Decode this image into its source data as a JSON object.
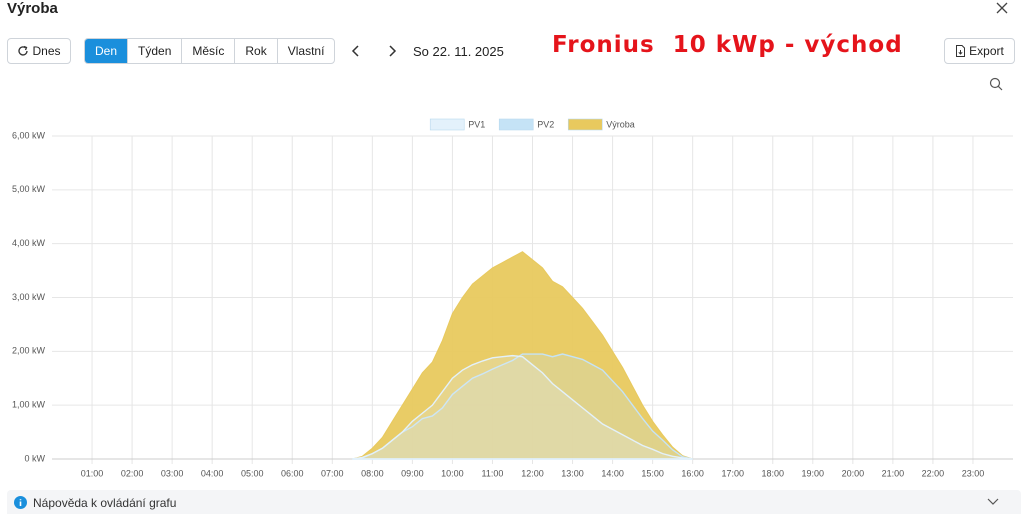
{
  "header": {
    "title": "Výroba"
  },
  "toolbar": {
    "today": "Dnes",
    "periods": [
      "Den",
      "Týden",
      "Měsíc",
      "Rok",
      "Vlastní"
    ],
    "active_period": "Den",
    "date": "So 22. 11. 2025",
    "annotation": "Fronius  10 kWp - východ",
    "export": "Export"
  },
  "chart_data": {
    "type": "area",
    "x": [
      7.5,
      7.75,
      8,
      8.25,
      8.5,
      8.75,
      9,
      9.25,
      9.5,
      9.75,
      10,
      10.25,
      10.5,
      10.75,
      11,
      11.25,
      11.5,
      11.75,
      12,
      12.25,
      12.5,
      12.75,
      13,
      13.25,
      13.5,
      13.75,
      14,
      14.25,
      14.5,
      14.75,
      15,
      15.25,
      15.5,
      15.75,
      16
    ],
    "series": [
      {
        "name": "PV1",
        "color": "#e3f1fb",
        "values": [
          0,
          0.03,
          0.1,
          0.2,
          0.35,
          0.5,
          0.7,
          0.85,
          1.0,
          1.25,
          1.5,
          1.65,
          1.75,
          1.82,
          1.88,
          1.9,
          1.92,
          1.9,
          1.75,
          1.6,
          1.4,
          1.25,
          1.1,
          0.95,
          0.8,
          0.65,
          0.55,
          0.45,
          0.35,
          0.25,
          0.18,
          0.1,
          0.05,
          0.02,
          0
        ]
      },
      {
        "name": "PV2",
        "color": "#c5e3f6",
        "values": [
          0,
          0.02,
          0.1,
          0.2,
          0.35,
          0.5,
          0.6,
          0.75,
          0.8,
          0.95,
          1.2,
          1.35,
          1.5,
          1.58,
          1.67,
          1.75,
          1.83,
          1.95,
          1.95,
          1.95,
          1.9,
          1.95,
          1.9,
          1.85,
          1.75,
          1.65,
          1.45,
          1.25,
          1.0,
          0.75,
          0.52,
          0.35,
          0.17,
          0.04,
          0
        ]
      },
      {
        "name": "Výroba",
        "color": "#e8c95e",
        "values": [
          0,
          0.05,
          0.2,
          0.4,
          0.7,
          1.0,
          1.3,
          1.6,
          1.8,
          2.2,
          2.7,
          3.0,
          3.25,
          3.4,
          3.55,
          3.65,
          3.75,
          3.85,
          3.7,
          3.55,
          3.3,
          3.2,
          3.0,
          2.8,
          2.55,
          2.3,
          2.0,
          1.7,
          1.35,
          1.0,
          0.7,
          0.45,
          0.22,
          0.06,
          0
        ]
      }
    ],
    "xlim": [
      0,
      24
    ],
    "xticks": [
      {
        "value": 1,
        "label": "01:00"
      },
      {
        "value": 2,
        "label": "02:00"
      },
      {
        "value": 3,
        "label": "03:00"
      },
      {
        "value": 4,
        "label": "04:00"
      },
      {
        "value": 5,
        "label": "05:00"
      },
      {
        "value": 6,
        "label": "06:00"
      },
      {
        "value": 7,
        "label": "07:00"
      },
      {
        "value": 8,
        "label": "08:00"
      },
      {
        "value": 9,
        "label": "09:00"
      },
      {
        "value": 10,
        "label": "10:00"
      },
      {
        "value": 11,
        "label": "11:00"
      },
      {
        "value": 12,
        "label": "12:00"
      },
      {
        "value": 13,
        "label": "13:00"
      },
      {
        "value": 14,
        "label": "14:00"
      },
      {
        "value": 15,
        "label": "15:00"
      },
      {
        "value": 16,
        "label": "16:00"
      },
      {
        "value": 17,
        "label": "17:00"
      },
      {
        "value": 18,
        "label": "18:00"
      },
      {
        "value": 19,
        "label": "19:00"
      },
      {
        "value": 20,
        "label": "20:00"
      },
      {
        "value": 21,
        "label": "21:00"
      },
      {
        "value": 22,
        "label": "22:00"
      },
      {
        "value": 23,
        "label": "23:00"
      }
    ],
    "ylim": [
      0,
      6
    ],
    "yticks": [
      {
        "value": 0,
        "label": "0 kW"
      },
      {
        "value": 1,
        "label": "1,00 kW"
      },
      {
        "value": 2,
        "label": "2,00 kW"
      },
      {
        "value": 3,
        "label": "3,00 kW"
      },
      {
        "value": 4,
        "label": "4,00 kW"
      },
      {
        "value": 5,
        "label": "5,00 kW"
      },
      {
        "value": 6,
        "label": "6,00 kW"
      }
    ],
    "grid": true
  },
  "footer": {
    "help": "Nápověda k ovládání grafu"
  }
}
